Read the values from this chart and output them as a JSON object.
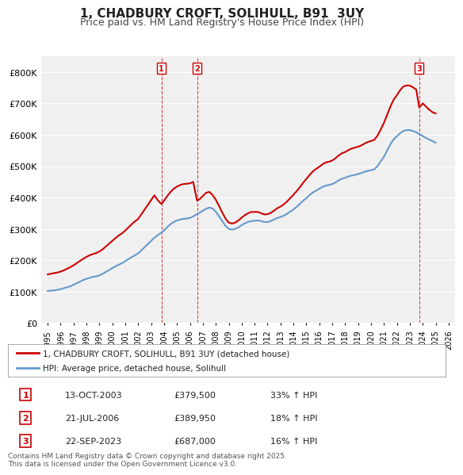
{
  "title": "1, CHADBURY CROFT, SOLIHULL, B91  3UY",
  "subtitle": "Price paid vs. HM Land Registry's House Price Index (HPI)",
  "ylabel": "",
  "ylim": [
    0,
    850000
  ],
  "yticks": [
    0,
    100000,
    200000,
    300000,
    400000,
    500000,
    600000,
    700000,
    800000
  ],
  "ytick_labels": [
    "£0",
    "£100K",
    "£200K",
    "£300K",
    "£400K",
    "£500K",
    "£600K",
    "£700K",
    "£800K"
  ],
  "xlim_start": 1994.5,
  "xlim_end": 2026.5,
  "background_color": "#ffffff",
  "plot_bg_color": "#f0f0f0",
  "grid_color": "#ffffff",
  "sale_dates": [
    2003.79,
    2006.55,
    2023.73
  ],
  "sale_prices": [
    379500,
    389950,
    687000
  ],
  "sale_labels": [
    "1",
    "2",
    "3"
  ],
  "sale_date_strings": [
    "13-OCT-2003",
    "21-JUL-2006",
    "22-SEP-2023"
  ],
  "sale_price_strings": [
    "£379,500",
    "£389,950",
    "£687,000"
  ],
  "sale_hpi_strings": [
    "33% ↑ HPI",
    "18% ↑ HPI",
    "16% ↑ HPI"
  ],
  "legend_property": "1, CHADBURY CROFT, SOLIHULL, B91 3UY (detached house)",
  "legend_hpi": "HPI: Average price, detached house, Solihull",
  "footer": "Contains HM Land Registry data © Crown copyright and database right 2025.\nThis data is licensed under the Open Government Licence v3.0.",
  "red_color": "#cc0000",
  "blue_color": "#6699cc",
  "hpi_years": [
    1995.0,
    1995.25,
    1995.5,
    1995.75,
    1996.0,
    1996.25,
    1996.5,
    1996.75,
    1997.0,
    1997.25,
    1997.5,
    1997.75,
    1998.0,
    1998.25,
    1998.5,
    1998.75,
    1999.0,
    1999.25,
    1999.5,
    1999.75,
    2000.0,
    2000.25,
    2000.5,
    2000.75,
    2001.0,
    2001.25,
    2001.5,
    2001.75,
    2002.0,
    2002.25,
    2002.5,
    2002.75,
    2003.0,
    2003.25,
    2003.5,
    2003.75,
    2004.0,
    2004.25,
    2004.5,
    2004.75,
    2005.0,
    2005.25,
    2005.5,
    2005.75,
    2006.0,
    2006.25,
    2006.5,
    2006.75,
    2007.0,
    2007.25,
    2007.5,
    2007.75,
    2008.0,
    2008.25,
    2008.5,
    2008.75,
    2009.0,
    2009.25,
    2009.5,
    2009.75,
    2010.0,
    2010.25,
    2010.5,
    2010.75,
    2011.0,
    2011.25,
    2011.5,
    2011.75,
    2012.0,
    2012.25,
    2012.5,
    2012.75,
    2013.0,
    2013.25,
    2013.5,
    2013.75,
    2014.0,
    2014.25,
    2014.5,
    2014.75,
    2015.0,
    2015.25,
    2015.5,
    2015.75,
    2016.0,
    2016.25,
    2016.5,
    2016.75,
    2017.0,
    2017.25,
    2017.5,
    2017.75,
    2018.0,
    2018.25,
    2018.5,
    2018.75,
    2019.0,
    2019.25,
    2019.5,
    2019.75,
    2020.0,
    2020.25,
    2020.5,
    2020.75,
    2021.0,
    2021.25,
    2021.5,
    2021.75,
    2022.0,
    2022.25,
    2022.5,
    2022.75,
    2023.0,
    2023.25,
    2023.5,
    2023.75,
    2024.0,
    2024.25,
    2024.5,
    2024.75,
    2025.0
  ],
  "hpi_values": [
    102000,
    103000,
    104000,
    106000,
    108000,
    111000,
    114000,
    117000,
    122000,
    127000,
    132000,
    137000,
    141000,
    144000,
    147000,
    149000,
    152000,
    157000,
    163000,
    169000,
    175000,
    181000,
    186000,
    191000,
    197000,
    204000,
    210000,
    216000,
    222000,
    232000,
    242000,
    252000,
    262000,
    272000,
    280000,
    287000,
    295000,
    306000,
    315000,
    322000,
    327000,
    330000,
    332000,
    333000,
    335000,
    340000,
    346000,
    352000,
    358000,
    364000,
    368000,
    365000,
    355000,
    340000,
    325000,
    310000,
    300000,
    298000,
    300000,
    305000,
    312000,
    318000,
    322000,
    325000,
    326000,
    327000,
    325000,
    322000,
    322000,
    325000,
    330000,
    335000,
    338000,
    342000,
    348000,
    355000,
    362000,
    370000,
    380000,
    390000,
    398000,
    408000,
    416000,
    422000,
    428000,
    434000,
    438000,
    440000,
    443000,
    448000,
    455000,
    460000,
    463000,
    467000,
    470000,
    472000,
    475000,
    478000,
    482000,
    485000,
    487000,
    490000,
    500000,
    515000,
    530000,
    550000,
    570000,
    585000,
    595000,
    605000,
    612000,
    615000,
    615000,
    612000,
    608000,
    602000,
    596000,
    590000,
    585000,
    580000,
    575000
  ],
  "prop_years": [
    1995.0,
    1995.25,
    1995.5,
    1995.75,
    1996.0,
    1996.25,
    1996.5,
    1996.75,
    1997.0,
    1997.25,
    1997.5,
    1997.75,
    1998.0,
    1998.25,
    1998.5,
    1998.75,
    1999.0,
    1999.25,
    1999.5,
    1999.75,
    2000.0,
    2000.25,
    2000.5,
    2000.75,
    2001.0,
    2001.25,
    2001.5,
    2001.75,
    2002.0,
    2002.25,
    2002.5,
    2002.75,
    2003.0,
    2003.25,
    2003.5,
    2003.79,
    2004.0,
    2004.25,
    2004.5,
    2004.75,
    2005.0,
    2005.25,
    2005.5,
    2005.75,
    2006.0,
    2006.25,
    2006.55,
    2006.75,
    2007.0,
    2007.25,
    2007.5,
    2007.75,
    2008.0,
    2008.25,
    2008.5,
    2008.75,
    2009.0,
    2009.25,
    2009.5,
    2009.75,
    2010.0,
    2010.25,
    2010.5,
    2010.75,
    2011.0,
    2011.25,
    2011.5,
    2011.75,
    2012.0,
    2012.25,
    2012.5,
    2012.75,
    2013.0,
    2013.25,
    2013.5,
    2013.75,
    2014.0,
    2014.25,
    2014.5,
    2014.75,
    2015.0,
    2015.25,
    2015.5,
    2015.75,
    2016.0,
    2016.25,
    2016.5,
    2016.75,
    2017.0,
    2017.25,
    2017.5,
    2017.75,
    2018.0,
    2018.25,
    2018.5,
    2018.75,
    2019.0,
    2019.25,
    2019.5,
    2019.75,
    2020.0,
    2020.25,
    2020.5,
    2020.75,
    2021.0,
    2021.25,
    2021.5,
    2021.75,
    2022.0,
    2022.25,
    2022.5,
    2022.75,
    2023.0,
    2023.25,
    2023.5,
    2023.73,
    2024.0,
    2024.25,
    2024.5,
    2024.75,
    2025.0
  ],
  "prop_values": [
    155000,
    157000,
    159000,
    161000,
    164000,
    168000,
    173000,
    178000,
    184000,
    191000,
    198000,
    205000,
    211000,
    216000,
    220000,
    223000,
    228000,
    235000,
    244000,
    253000,
    262000,
    271000,
    279000,
    286000,
    295000,
    305000,
    315000,
    324000,
    332000,
    347000,
    362000,
    377000,
    392000,
    407000,
    392000,
    379500,
    390000,
    405000,
    418000,
    428000,
    435000,
    440000,
    443000,
    444000,
    445000,
    450000,
    389950,
    395000,
    405000,
    415000,
    418000,
    408000,
    393000,
    373000,
    352000,
    333000,
    320000,
    317000,
    320000,
    327000,
    336000,
    344000,
    350000,
    354000,
    354000,
    354000,
    350000,
    346000,
    347000,
    351000,
    358000,
    366000,
    371000,
    378000,
    387000,
    398000,
    409000,
    420000,
    433000,
    447000,
    459000,
    472000,
    483000,
    491000,
    498000,
    506000,
    512000,
    514000,
    518000,
    525000,
    534000,
    541000,
    545000,
    551000,
    556000,
    559000,
    562000,
    566000,
    572000,
    577000,
    580000,
    584000,
    597000,
    617000,
    638000,
    664000,
    690000,
    712000,
    726000,
    742000,
    754000,
    757000,
    757000,
    751000,
    744000,
    687000,
    700000,
    690000,
    680000,
    672000,
    668000
  ]
}
